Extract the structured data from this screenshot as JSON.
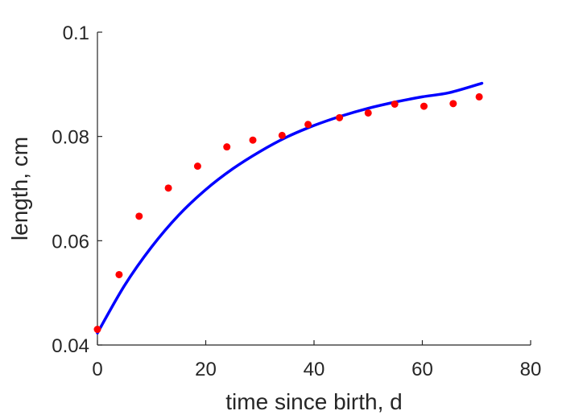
{
  "chart_data": {
    "type": "scatter",
    "title": "",
    "xlabel": "time since birth, d",
    "ylabel": "length, cm",
    "xlim": [
      0,
      80
    ],
    "ylim": [
      0.04,
      0.1
    ],
    "xticks": [
      0,
      20,
      40,
      60,
      80
    ],
    "xtick_labels": [
      "0",
      "20",
      "40",
      "60",
      "80"
    ],
    "yticks": [
      0.04,
      0.06,
      0.08,
      0.1
    ],
    "ytick_labels": [
      "0.04",
      "0.06",
      "0.08",
      "0.1"
    ],
    "grid": false,
    "legend": "none",
    "series": [
      {
        "kind": "scatter",
        "color": "#ff0000",
        "x": [
          0.0,
          4.0,
          7.7,
          13.1,
          18.5,
          23.9,
          28.7,
          34.1,
          38.9,
          44.7,
          50.0,
          54.9,
          60.3,
          65.7,
          70.5
        ],
        "y": [
          0.043,
          0.0535,
          0.0647,
          0.0701,
          0.0743,
          0.078,
          0.0793,
          0.0802,
          0.0823,
          0.0836,
          0.0845,
          0.0862,
          0.0858,
          0.0863,
          0.0876
        ]
      },
      {
        "kind": "line",
        "color": "#0000ff",
        "x": [
          0,
          5,
          10,
          15,
          20,
          25,
          30,
          35,
          40,
          45,
          50,
          55,
          60,
          65,
          71
        ],
        "y": [
          0.0423,
          0.0514,
          0.0588,
          0.0649,
          0.0698,
          0.0738,
          0.0771,
          0.0799,
          0.0821,
          0.0839,
          0.0854,
          0.0866,
          0.0876,
          0.0884,
          0.0902
        ]
      }
    ]
  }
}
